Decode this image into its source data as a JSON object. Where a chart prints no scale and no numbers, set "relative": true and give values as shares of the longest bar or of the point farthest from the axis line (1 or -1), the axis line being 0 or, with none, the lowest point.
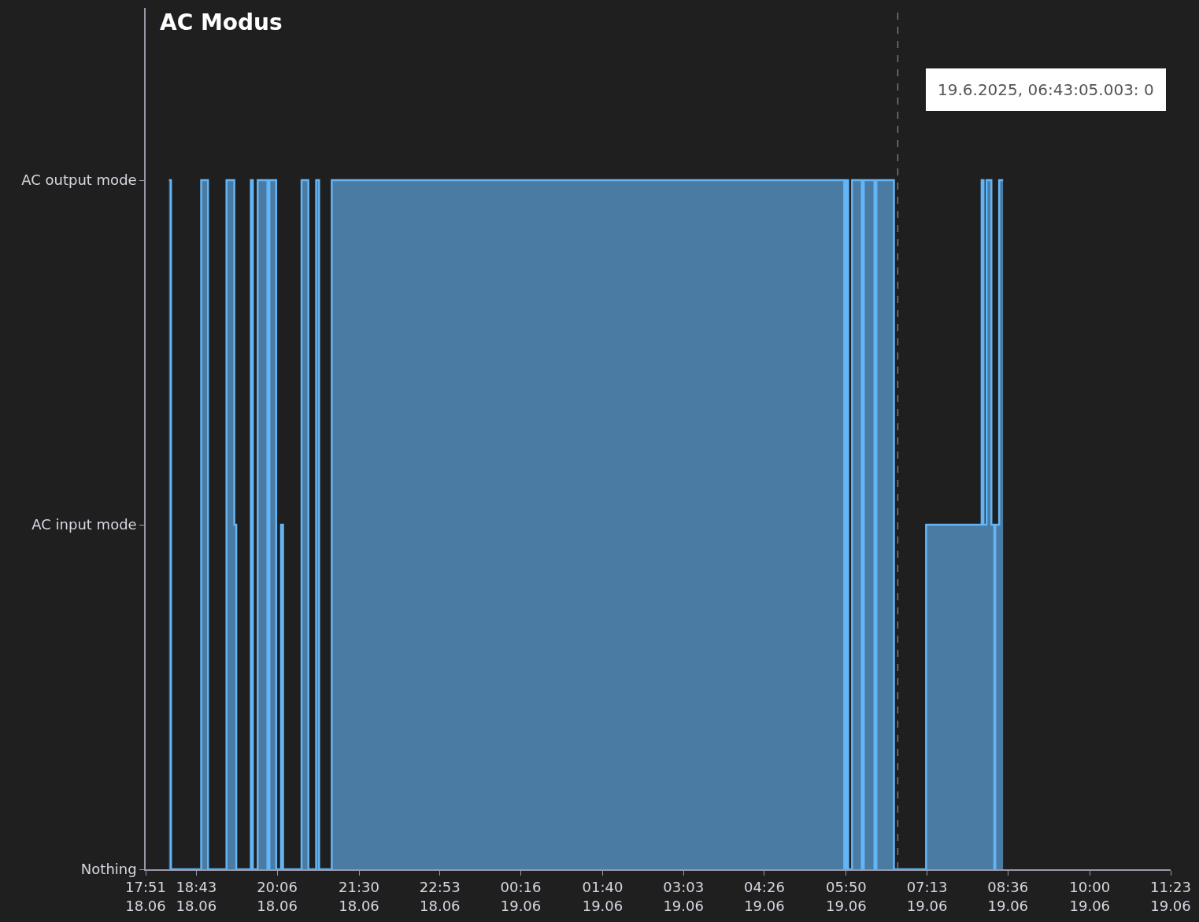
{
  "chart_data": {
    "type": "step",
    "title": "AC Modus",
    "x": [
      "2025-06-18T18:15",
      "2025-06-18T18:17",
      "2025-06-18T18:48",
      "2025-06-18T18:55",
      "2025-06-18T19:14",
      "2025-06-18T19:22",
      "2025-06-18T19:24",
      "2025-06-18T19:39",
      "2025-06-18T19:41",
      "2025-06-18T19:46",
      "2025-06-18T19:56",
      "2025-06-18T19:58",
      "2025-06-18T20:05",
      "2025-06-18T20:10",
      "2025-06-18T20:12",
      "2025-06-18T20:31",
      "2025-06-18T20:38",
      "2025-06-18T20:46",
      "2025-06-18T20:49",
      "2025-06-18T21:02",
      "2025-06-19T05:48",
      "2025-06-19T05:50",
      "2025-06-19T05:52",
      "2025-06-19T05:56",
      "2025-06-19T06:06",
      "2025-06-19T06:08",
      "2025-06-19T06:19",
      "2025-06-19T06:21",
      "2025-06-19T06:39",
      "2025-06-19T07:12",
      "2025-06-19T08:09",
      "2025-06-19T08:11",
      "2025-06-19T08:14",
      "2025-06-19T08:19",
      "2025-06-19T08:22",
      "2025-06-19T08:23",
      "2025-06-19T08:27",
      "2025-06-19T08:31"
    ],
    "relative": true,
    "series": [
      {
        "color": "#64b5f6",
        "values": [
          1,
          0,
          1,
          0,
          1,
          0.5,
          0,
          1,
          0,
          1,
          0,
          1,
          0,
          0.5,
          0,
          1,
          0,
          1,
          0,
          1,
          0,
          1,
          0,
          1,
          0,
          1,
          0,
          1,
          0,
          0.5,
          1,
          0.5,
          1,
          0.5,
          0,
          0.5,
          1,
          1
        ]
      }
    ],
    "y_categories": [
      "AC output mode",
      "AC input mode",
      "Nothing"
    ],
    "xlim": [
      "2025-06-18T17:51",
      "2025-06-19T11:23"
    ],
    "xticks": [
      {
        "value": "2025-06-18T17:51",
        "label": "17:51\n18.06"
      },
      {
        "value": "2025-06-18T18:43",
        "label": "18:43\n18.06"
      },
      {
        "value": "2025-06-18T20:06",
        "label": "20:06\n18.06"
      },
      {
        "value": "2025-06-18T21:30",
        "label": "21:30\n18.06"
      },
      {
        "value": "2025-06-18T22:53",
        "label": "22:53\n18.06"
      },
      {
        "value": "2025-06-19T00:16",
        "label": "00:16\n19.06"
      },
      {
        "value": "2025-06-19T01:40",
        "label": "01:40\n19.06"
      },
      {
        "value": "2025-06-19T03:03",
        "label": "03:03\n19.06"
      },
      {
        "value": "2025-06-19T04:26",
        "label": "04:26\n19.06"
      },
      {
        "value": "2025-06-19T05:50",
        "label": "05:50\n19.06"
      },
      {
        "value": "2025-06-19T07:13",
        "label": "07:13\n19.06"
      },
      {
        "value": "2025-06-19T08:36",
        "label": "08:36\n19.06"
      },
      {
        "value": "2025-06-19T10:00",
        "label": "10:00\n19.06"
      },
      {
        "value": "2025-06-19T11:23",
        "label": "11:23\n19.06"
      }
    ],
    "ref_lines": [
      {
        "axis": "x",
        "value": "2025-06-19T06:43",
        "label": "19.6.2025, 06:43:05.003: 0",
        "line_style": "dashed",
        "color": "#8a8a9a"
      }
    ]
  }
}
